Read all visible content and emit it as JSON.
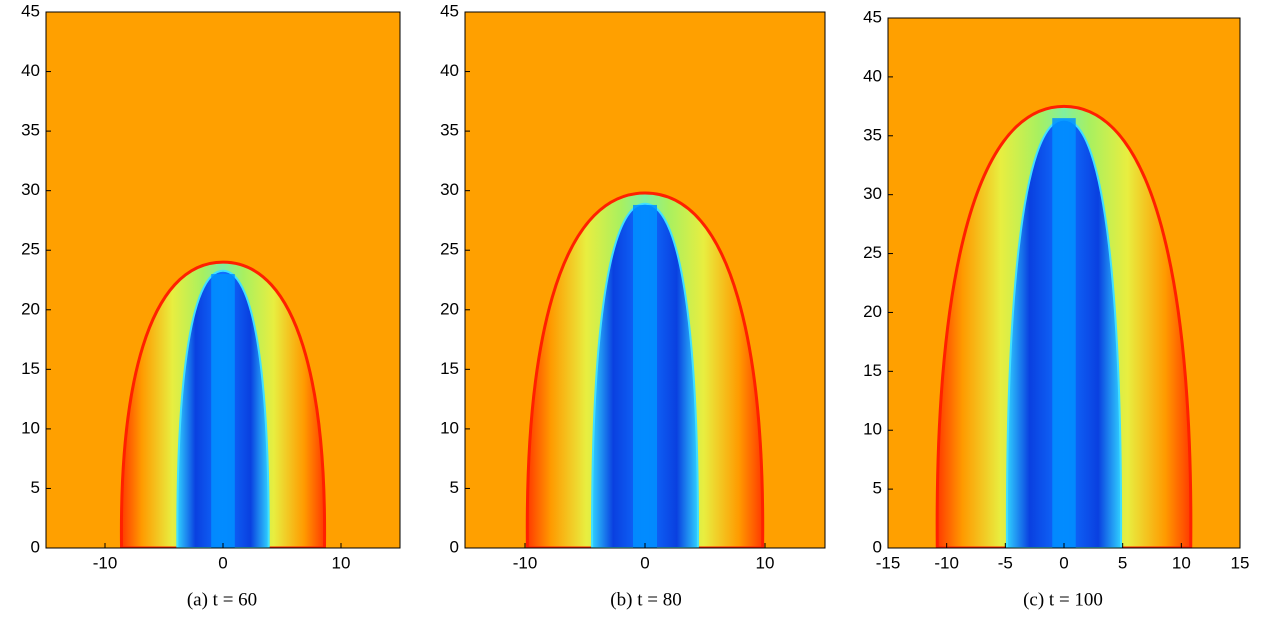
{
  "chart_data": [
    {
      "type": "image",
      "title": "(a) t = 60",
      "xlim": [
        -15,
        15
      ],
      "ylim": [
        0,
        45
      ],
      "xticks": [
        -10,
        0,
        10
      ],
      "yticks": [
        0,
        5,
        10,
        15,
        20,
        25,
        30,
        35,
        40,
        45
      ]
    },
    {
      "type": "image",
      "title": "(b) t = 80",
      "xlim": [
        -15,
        15
      ],
      "ylim": [
        0,
        45
      ],
      "xticks": [
        -10,
        0,
        10
      ],
      "yticks": [
        0,
        5,
        10,
        15,
        20,
        25,
        30,
        35,
        40,
        45
      ]
    },
    {
      "type": "image",
      "title": "(c) t = 100",
      "xlim": [
        -15,
        15
      ],
      "ylim": [
        0,
        45
      ],
      "xticks": [
        -15,
        -10,
        -5,
        0,
        5,
        10,
        15
      ],
      "yticks": [
        0,
        5,
        10,
        15,
        20,
        25,
        30,
        35,
        40,
        45
      ]
    }
  ]
}
